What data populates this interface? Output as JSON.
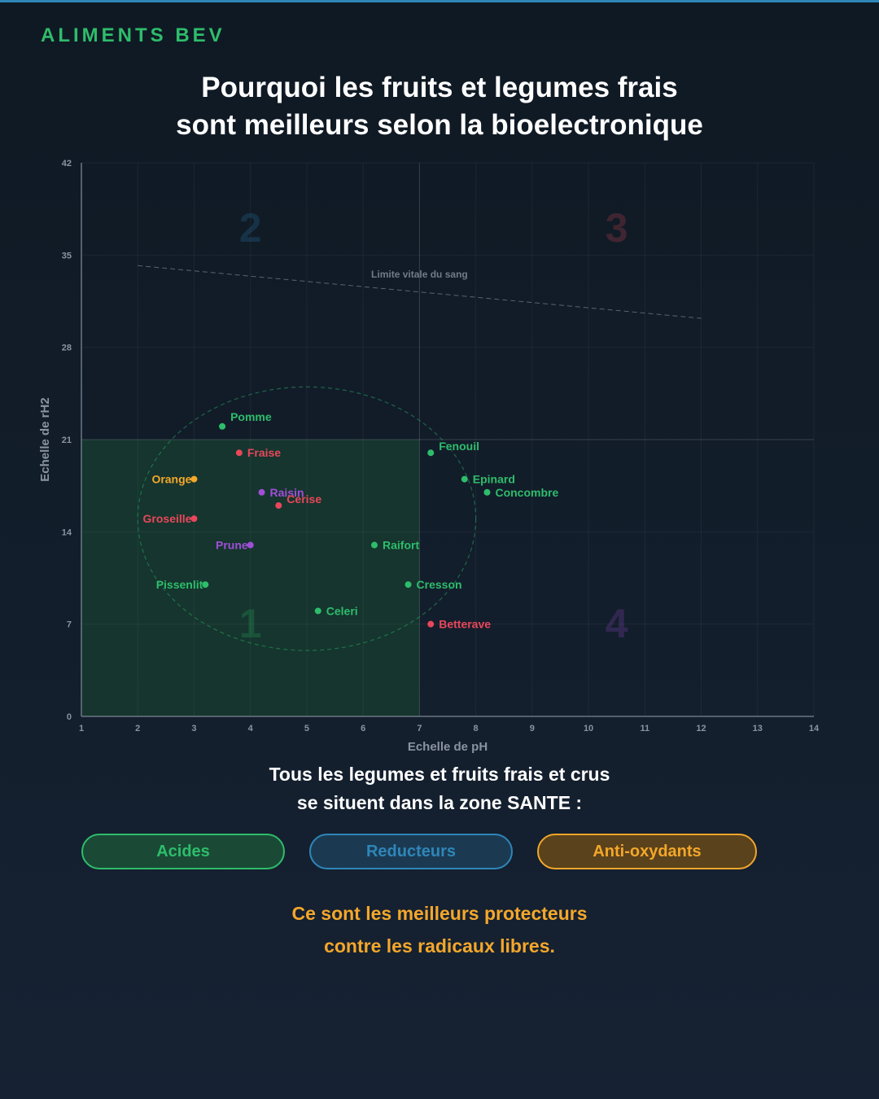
{
  "brand": "ALIMENTS BEV",
  "title": {
    "line1": "Pourquoi les fruits et legumes frais",
    "line2": "sont meilleurs selon la bioelectronique"
  },
  "colors": {
    "background": "#0f1923",
    "green": "#2ebd6b",
    "red": "#e8475a",
    "orange": "#f4a72a",
    "purple": "#a04ed8",
    "blue": "#2e86b8",
    "zone1": "#16392f"
  },
  "chart_data": {
    "type": "scatter",
    "xlabel": "Echelle de pH",
    "ylabel": "Echelle de rH2",
    "xlim": [
      1,
      14
    ],
    "ylim": [
      0,
      42
    ],
    "xticks": [
      1,
      2,
      3,
      4,
      5,
      6,
      7,
      8,
      9,
      10,
      11,
      12,
      13,
      14
    ],
    "yticks": [
      0,
      7,
      14,
      21,
      28,
      35,
      42
    ],
    "grid": true,
    "dividers": {
      "x": 7,
      "y": 21
    },
    "highlight_zone": {
      "x": [
        1,
        7
      ],
      "y": [
        0,
        21
      ]
    },
    "zones": [
      {
        "label": "1",
        "x": 4,
        "y": 6,
        "color": "#2ebd6b"
      },
      {
        "label": "2",
        "x": 4,
        "y": 36,
        "color": "#2e86b8"
      },
      {
        "label": "3",
        "x": 10.5,
        "y": 36,
        "color": "#e8475a"
      },
      {
        "label": "4",
        "x": 10.5,
        "y": 6,
        "color": "#a04ed8"
      }
    ],
    "reference_line": {
      "label": "Limite vitale du sang",
      "x": [
        2,
        12
      ],
      "y": [
        34.2,
        30.2
      ]
    },
    "ellipse": {
      "cx": 5,
      "cy": 15,
      "rx": 3,
      "ry": 10
    },
    "points": [
      {
        "name": "Pomme",
        "x": 3.5,
        "y": 22,
        "group": "green",
        "label_side": "right",
        "dy": -12
      },
      {
        "name": "Fraise",
        "x": 3.8,
        "y": 20,
        "group": "red",
        "label_side": "right",
        "dy": 0
      },
      {
        "name": "Orange",
        "x": 3.0,
        "y": 18,
        "group": "orange",
        "label_side": "left",
        "dy": 0
      },
      {
        "name": "Raisin",
        "x": 4.2,
        "y": 17,
        "group": "purple",
        "label_side": "right",
        "dy": 0
      },
      {
        "name": "Cerise",
        "x": 4.5,
        "y": 16,
        "group": "red",
        "label_side": "right",
        "dy": -8
      },
      {
        "name": "Groseille",
        "x": 3.0,
        "y": 15,
        "group": "red",
        "label_side": "left",
        "dy": 0
      },
      {
        "name": "Prune",
        "x": 4.0,
        "y": 13,
        "group": "purple",
        "label_side": "left",
        "dy": 0
      },
      {
        "name": "Pissenlit",
        "x": 3.2,
        "y": 10,
        "group": "green",
        "label_side": "left",
        "dy": 0
      },
      {
        "name": "Celeri",
        "x": 5.2,
        "y": 8,
        "group": "green",
        "label_side": "right",
        "dy": 0
      },
      {
        "name": "Raifort",
        "x": 6.2,
        "y": 13,
        "group": "green",
        "label_side": "right",
        "dy": 0
      },
      {
        "name": "Cresson",
        "x": 6.8,
        "y": 10,
        "group": "green",
        "label_side": "right",
        "dy": 0
      },
      {
        "name": "Betterave",
        "x": 7.2,
        "y": 7,
        "group": "red",
        "label_side": "right",
        "dy": 0
      },
      {
        "name": "Fenouil",
        "x": 7.2,
        "y": 20,
        "group": "green",
        "label_side": "right",
        "dy": -8
      },
      {
        "name": "Epinard",
        "x": 7.8,
        "y": 18,
        "group": "green",
        "label_side": "right",
        "dy": 0
      },
      {
        "name": "Concombre",
        "x": 8.2,
        "y": 17,
        "group": "green",
        "label_side": "right",
        "dy": 0
      }
    ]
  },
  "subtitle": {
    "line1": "Tous les legumes et fruits frais et crus",
    "line2": "se situent dans la zone SANTE :"
  },
  "pills": [
    {
      "label": "Acides",
      "color": "#2ebd6b"
    },
    {
      "label": "Reducteurs",
      "color": "#2e86b8"
    },
    {
      "label": "Anti-oxydants",
      "color": "#f4a72a"
    }
  ],
  "footer": {
    "line1": "Ce sont les meilleurs protecteurs",
    "line2": "contre les radicaux libres.",
    "color": "#f4a72a"
  }
}
